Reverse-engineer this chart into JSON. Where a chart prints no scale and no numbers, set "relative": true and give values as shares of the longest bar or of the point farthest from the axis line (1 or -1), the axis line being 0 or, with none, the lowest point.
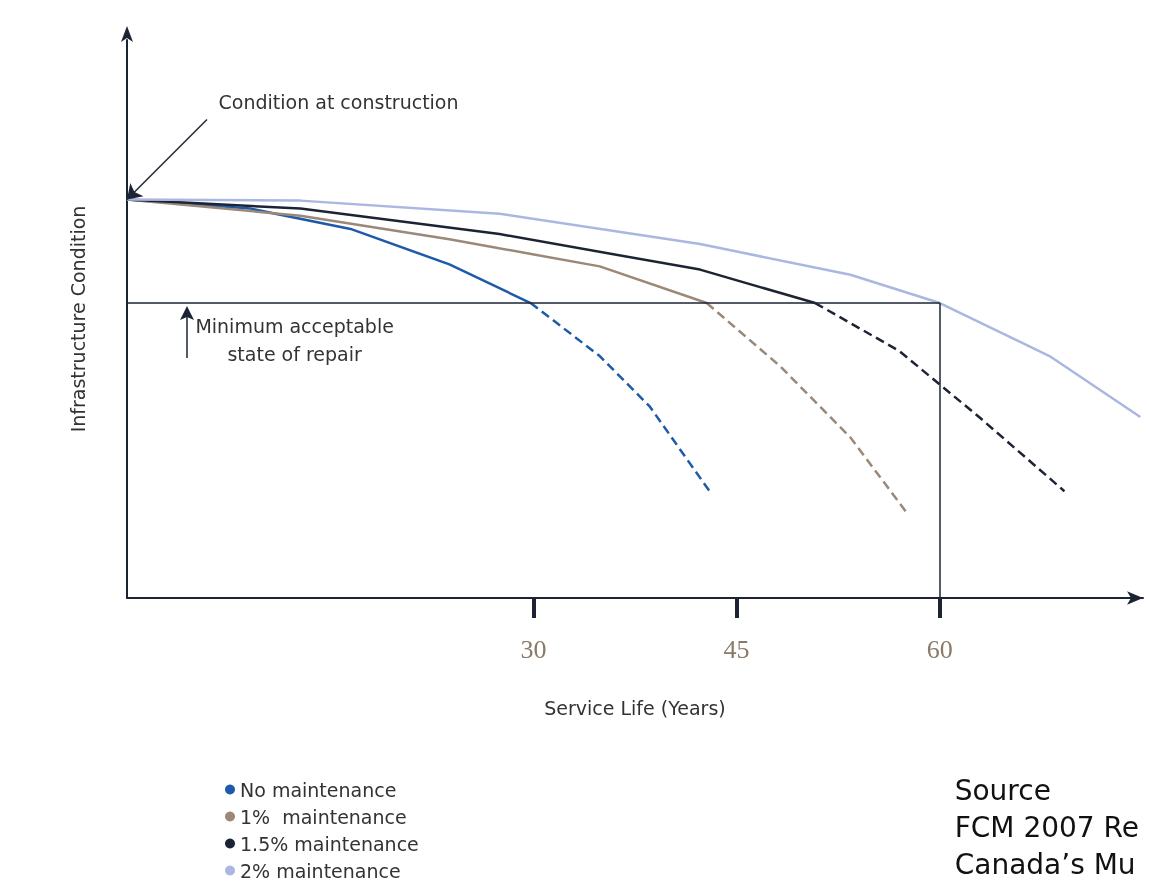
{
  "chart_data": {
    "type": "line",
    "relative": true,
    "xlabel": "Service Life (Years)",
    "ylabel": "Infrastructure Condition",
    "xlim": [
      0,
      75
    ],
    "xticks": [
      30,
      45,
      60
    ],
    "grid": false,
    "legend": "bottom left",
    "marker": "none",
    "series": [
      {
        "name": "No maintenance",
        "color": "#1f5aa8",
        "line_style": "solid",
        "x": [
          0,
          9.1,
          16.5,
          23.8,
          29.8
        ],
        "values": [
          1,
          0.977,
          0.926,
          0.837,
          0.74
        ]
      },
      {
        "color": "#1f5aa8",
        "line_style": "dashed",
        "x": [
          29.8,
          34.9,
          38.6,
          43.0
        ],
        "values": [
          0.74,
          0.607,
          0.48,
          0.268
        ]
      },
      {
        "name": "1%  maintenance",
        "color": "#9a8878",
        "line_style": "solid",
        "x": [
          0,
          12.8,
          23.8,
          34.9,
          42.8
        ],
        "values": [
          1,
          0.959,
          0.9,
          0.832,
          0.74
        ]
      },
      {
        "color": "#9a8878",
        "line_style": "dashed",
        "x": [
          42.8,
          48.2,
          53.4,
          57.6
        ],
        "values": [
          0.74,
          0.582,
          0.403,
          0.212
        ]
      },
      {
        "name": "1.5% maintenance",
        "color": "#1c2433",
        "line_style": "solid",
        "x": [
          0,
          12.8,
          27.5,
          42.3,
          50.8
        ],
        "values": [
          1,
          0.977,
          0.913,
          0.824,
          0.74
        ]
      },
      {
        "color": "#1c2433",
        "line_style": "dashed",
        "x": [
          50.8,
          57.0,
          62.9,
          69.2
        ],
        "values": [
          0.74,
          0.62,
          0.454,
          0.268
        ]
      },
      {
        "name": "2% maintenance",
        "color": "#aab7e0",
        "line_style": "solid",
        "x": [
          0,
          12.8,
          27.5,
          42.3,
          53.4,
          60,
          68.1,
          74.8
        ],
        "values": [
          1,
          0.997,
          0.964,
          0.888,
          0.811,
          0.74,
          0.607,
          0.454
        ]
      }
    ],
    "ref_lines": [
      {
        "axis": "y",
        "value": 0.74,
        "label": "Minimum acceptable\nstate of repair",
        "color": "#1c2433"
      },
      {
        "axis": "x",
        "value": 60,
        "color": "#1c2433"
      }
    ],
    "annotations": [
      {
        "text": "Condition at construction",
        "x": 0,
        "y": 1
      },
      "Source",
      "FCM 2007 Re",
      "Canada’s Mu"
    ]
  }
}
